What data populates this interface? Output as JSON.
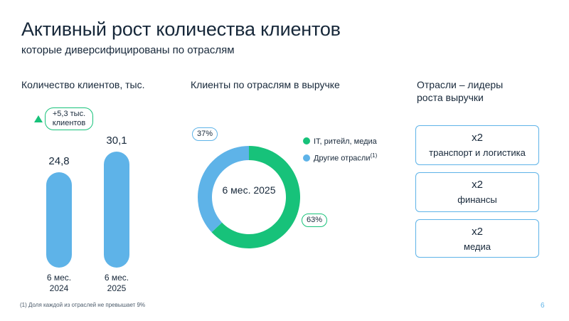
{
  "title": "Активный рост количества клиентов",
  "subtitle": "которые диверсифицированы по отраслям",
  "left": {
    "title": "Количество клиентов, тыс.",
    "delta_line1": "+5,3 тыс.",
    "delta_line2": "клиентов"
  },
  "middle": {
    "title": "Клиенты по отраслям в выручке",
    "center_label": "6 мес. 2025"
  },
  "right": {
    "title_line1": "Отрасли – лидеры",
    "title_line2": "роста выручки",
    "cards": [
      {
        "multiplier": "x2",
        "name": "транспорт и логистика"
      },
      {
        "multiplier": "x2",
        "name": "финансы"
      },
      {
        "multiplier": "x2",
        "name": "медиа"
      }
    ]
  },
  "colors": {
    "blue": "#5eb3e8",
    "green": "#17c27a",
    "text": "#17283a"
  },
  "chart_data": [
    {
      "type": "bar",
      "title": "Количество клиентов, тыс.",
      "categories": [
        "6 мес. 2024",
        "6 мес. 2025"
      ],
      "category_lines": [
        [
          "6 мес.",
          "2024"
        ],
        [
          "6 мес.",
          "2025"
        ]
      ],
      "values": [
        24.8,
        30.1
      ],
      "value_labels": [
        "24,8",
        "30,1"
      ]
    },
    {
      "type": "pie",
      "title": "Клиенты по отраслям в выручке",
      "series": [
        {
          "name": "IT, ритейл, медиа",
          "value": 63,
          "label": "63%",
          "color": "#17c27a"
        },
        {
          "name": "Другие отрасли",
          "value": 37,
          "label": "37%",
          "color": "#5eb3e8",
          "footnote_mark": "(1)"
        }
      ]
    }
  ],
  "footnote": "(1) Доля каждой из отраслей не превышает 9%",
  "page_number": "6"
}
